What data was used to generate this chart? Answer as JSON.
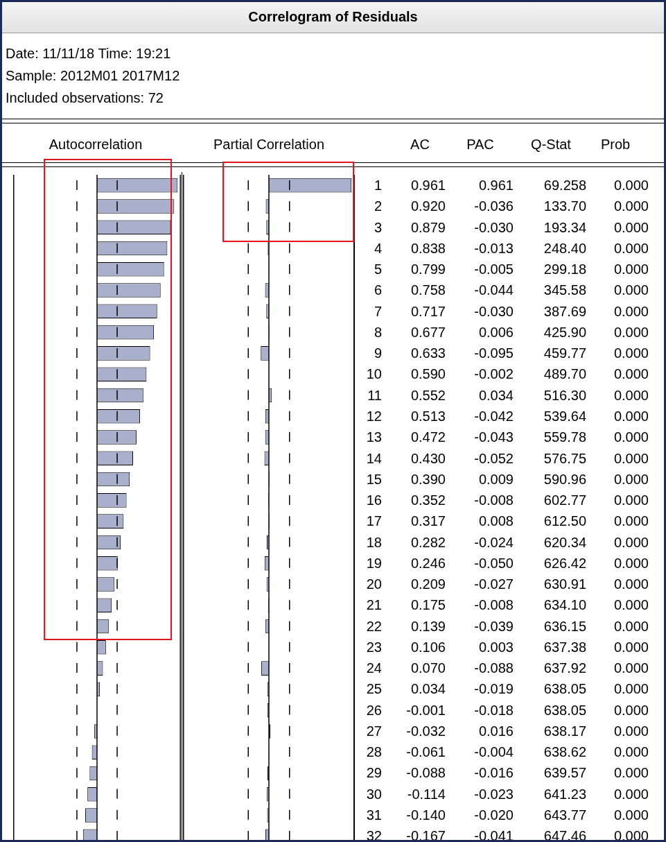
{
  "chart_data": [
    {
      "type": "bar",
      "orientation": "horizontal",
      "title": "Autocorrelation",
      "tick_labels": "y",
      "xlim": [
        -1,
        1
      ],
      "categories": [
        "1",
        "2",
        "3",
        "4",
        "5",
        "6",
        "7",
        "8",
        "9",
        "10",
        "11",
        "12",
        "13",
        "14",
        "15",
        "16",
        "17",
        "18",
        "19",
        "20",
        "21",
        "22",
        "23",
        "24",
        "25",
        "26",
        "27",
        "28",
        "29",
        "30",
        "31",
        "32"
      ],
      "series": [
        {
          "name": "AC",
          "color": "#a9b0cc",
          "values": [
            0.961,
            0.92,
            0.879,
            0.838,
            0.799,
            0.758,
            0.717,
            0.677,
            0.633,
            0.59,
            0.552,
            0.513,
            0.472,
            0.43,
            0.39,
            0.352,
            0.317,
            0.282,
            0.246,
            0.209,
            0.175,
            0.139,
            0.106,
            0.07,
            0.034,
            -0.001,
            -0.032,
            -0.061,
            -0.088,
            -0.114,
            -0.14,
            -0.167
          ],
          "value_labels": [
            "0.961",
            "0.920",
            "0.879",
            "0.838",
            "0.799",
            "0.758",
            "0.717",
            "0.677",
            "0.633",
            "0.590",
            "0.552",
            "0.513",
            "0.472",
            "0.430",
            "0.390",
            "0.352",
            "0.317",
            "0.282",
            "0.246",
            "0.209",
            "0.175",
            "0.139",
            "0.106",
            "0.070",
            "0.034",
            "-0.001",
            "-0.032",
            "-0.061",
            "-0.088",
            "-0.114",
            "-0.140",
            "-0.167"
          ]
        }
      ],
      "ref_lines": [
        {
          "axis": "x",
          "value": -0.24,
          "line_style": "dashed",
          "color": "#000000"
        },
        {
          "axis": "x",
          "value": 0.24,
          "line_style": "dashed",
          "color": "#000000"
        }
      ]
    },
    {
      "type": "bar",
      "orientation": "horizontal",
      "title": "Partial Correlation",
      "tick_labels": false,
      "xlim": [
        -1,
        1
      ],
      "categories": [
        "1",
        "2",
        "3",
        "4",
        "5",
        "6",
        "7",
        "8",
        "9",
        "10",
        "11",
        "12",
        "13",
        "14",
        "15",
        "16",
        "17",
        "18",
        "19",
        "20",
        "21",
        "22",
        "23",
        "24",
        "25",
        "26",
        "27",
        "28",
        "29",
        "30",
        "31",
        "32"
      ],
      "series": [
        {
          "name": "PAC",
          "color": "#a9b0cc",
          "values": [
            0.961,
            -0.036,
            -0.03,
            -0.013,
            -0.005,
            -0.044,
            -0.03,
            0.006,
            -0.095,
            -0.002,
            0.034,
            -0.042,
            -0.043,
            -0.052,
            0.009,
            -0.008,
            0.008,
            -0.024,
            -0.05,
            -0.027,
            -0.008,
            -0.039,
            0.003,
            -0.088,
            -0.019,
            -0.018,
            0.016,
            -0.004,
            -0.016,
            -0.023,
            -0.02,
            -0.041
          ],
          "value_labels": [
            "0.961",
            "-0.036",
            "-0.030",
            "-0.013",
            "-0.005",
            "-0.044",
            "-0.030",
            "0.006",
            "-0.095",
            "-0.002",
            "0.034",
            "-0.042",
            "-0.043",
            "-0.052",
            "0.009",
            "-0.008",
            "0.008",
            "-0.024",
            "-0.050",
            "-0.027",
            "-0.008",
            "-0.039",
            "0.003",
            "-0.088",
            "-0.019",
            "-0.018",
            "0.016",
            "-0.004",
            "-0.016",
            "-0.023",
            "-0.020",
            "-0.041"
          ]
        }
      ],
      "ref_lines": [
        {
          "axis": "x",
          "value": -0.24,
          "line_style": "dashed",
          "color": "#000000"
        },
        {
          "axis": "x",
          "value": 0.24,
          "line_style": "dashed",
          "color": "#000000"
        }
      ]
    },
    {
      "type": "other",
      "title": "Correlogram of Residuals",
      "annotations": [
        "Date: 11/11/18   Time: 19:21",
        "Sample: 2012M01 2017M12",
        "Included observations: 72",
        "Q-Stat",
        "Prob",
        "69.258",
        "0.000",
        "133.70",
        "0.000",
        "193.34",
        "0.000",
        "248.40",
        "0.000",
        "299.18",
        "0.000",
        "345.58",
        "0.000",
        "387.69",
        "0.000",
        "425.90",
        "0.000",
        "459.77",
        "0.000",
        "489.70",
        "0.000",
        "516.30",
        "0.000",
        "539.64",
        "0.000",
        "559.78",
        "0.000",
        "576.75",
        "0.000",
        "590.96",
        "0.000",
        "602.77",
        "0.000",
        "612.50",
        "0.000",
        "620.34",
        "0.000",
        "626.42",
        "0.000",
        "630.91",
        "0.000",
        "634.10",
        "0.000",
        "636.15",
        "0.000",
        "637.38",
        "0.000",
        "637.92",
        "0.000",
        "638.05",
        "0.000",
        "638.05",
        "0.000",
        "638.17",
        "0.000",
        "638.62",
        "0.000",
        "639.57",
        "0.000",
        "641.23",
        "0.000",
        "643.77",
        "0.000",
        "647.46",
        "0.000"
      ]
    }
  ]
}
